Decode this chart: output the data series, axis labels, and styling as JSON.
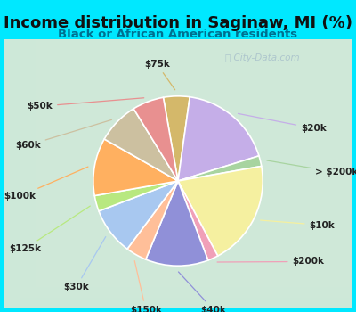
{
  "title": "Income distribution in Saginaw, MI (%)",
  "subtitle": "Black or African American residents",
  "watermark": "Ⓜ City-Data.com",
  "bg_color": "#00e8ff",
  "chart_bg_top_left": "#c8edd8",
  "chart_bg_bottom_right": "#e0f4f8",
  "labels": [
    "$75k",
    "$20k",
    "> $200k",
    "$10k",
    "$200k",
    "$40k",
    "$150k",
    "$30k",
    "$125k",
    "$100k",
    "$60k",
    "$50k"
  ],
  "values": [
    5,
    18,
    2,
    20,
    2,
    12,
    4,
    9,
    3,
    11,
    8,
    6
  ],
  "colors": [
    "#d4b86a",
    "#c5aee8",
    "#a8d4a0",
    "#f5f0a0",
    "#f0a0b8",
    "#9090d8",
    "#ffbf99",
    "#a8c8f0",
    "#b8e880",
    "#ffb060",
    "#ccc0a0",
    "#e89090"
  ],
  "title_fontsize": 13,
  "subtitle_fontsize": 9.5,
  "subtitle_color": "#007090",
  "title_color": "#111111",
  "label_fontsize": 7.5
}
